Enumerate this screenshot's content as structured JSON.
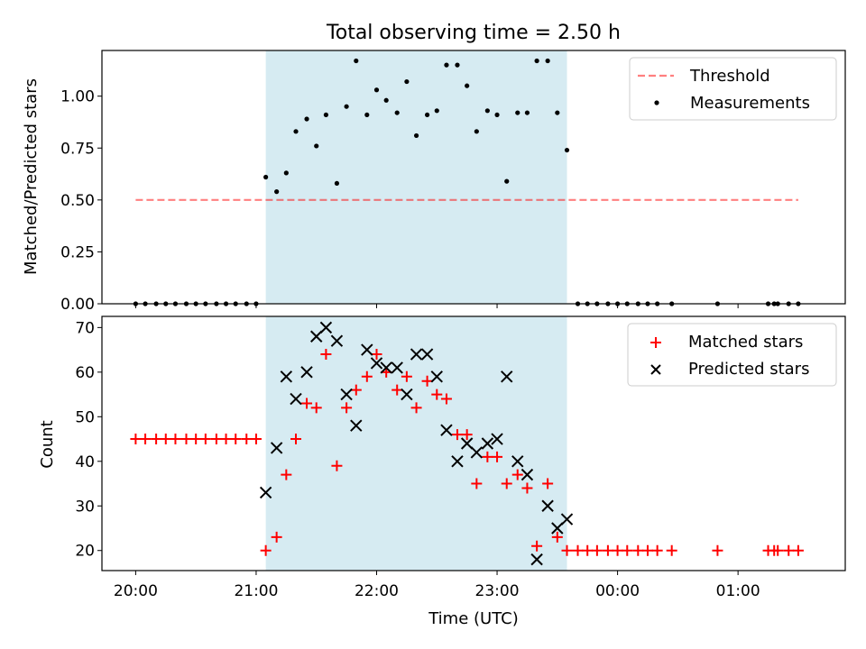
{
  "title": "Total observing time = 2.50 h",
  "xlabel": "Time (UTC)",
  "colors": {
    "shade": "#add8e6",
    "threshold": "#ff0000",
    "measurement": "#000000",
    "matched": "#ff0000",
    "predicted": "#000000"
  },
  "chart_data": [
    {
      "type": "scatter",
      "panel": "top",
      "ylabel": "Matched/Predicted stars",
      "ylim": [
        0,
        1.22
      ],
      "yticks": [
        "0.00",
        "0.25",
        "0.50",
        "0.75",
        "1.00"
      ],
      "xlim": [
        19.72,
        25.89
      ],
      "shaded_range": [
        21.08,
        23.58
      ],
      "legend_position": "top-right",
      "legend": [
        "Threshold",
        "Measurements"
      ],
      "threshold": {
        "name": "Threshold",
        "x": [
          20.0,
          25.5
        ],
        "y": 0.5,
        "style": "dashed"
      },
      "series": [
        {
          "name": "Measurements",
          "points": [
            [
              20.0,
              0.0
            ],
            [
              20.08,
              0.0
            ],
            [
              20.17,
              0.0
            ],
            [
              20.25,
              0.0
            ],
            [
              20.33,
              0.0
            ],
            [
              20.42,
              0.0
            ],
            [
              20.5,
              0.0
            ],
            [
              20.58,
              0.0
            ],
            [
              20.67,
              0.0
            ],
            [
              20.75,
              0.0
            ],
            [
              20.83,
              0.0
            ],
            [
              20.92,
              0.0
            ],
            [
              21.0,
              0.0
            ],
            [
              21.08,
              0.61
            ],
            [
              21.17,
              0.54
            ],
            [
              21.25,
              0.63
            ],
            [
              21.33,
              0.83
            ],
            [
              21.42,
              0.89
            ],
            [
              21.5,
              0.76
            ],
            [
              21.58,
              0.91
            ],
            [
              21.67,
              0.58
            ],
            [
              21.75,
              0.95
            ],
            [
              21.83,
              1.17
            ],
            [
              21.92,
              0.91
            ],
            [
              22.0,
              1.03
            ],
            [
              22.08,
              0.98
            ],
            [
              22.17,
              0.92
            ],
            [
              22.25,
              1.07
            ],
            [
              22.33,
              0.81
            ],
            [
              22.42,
              0.91
            ],
            [
              22.5,
              0.93
            ],
            [
              22.58,
              1.15
            ],
            [
              22.67,
              1.15
            ],
            [
              22.75,
              1.05
            ],
            [
              22.83,
              0.83
            ],
            [
              22.92,
              0.93
            ],
            [
              23.0,
              0.91
            ],
            [
              23.08,
              0.59
            ],
            [
              23.17,
              0.92
            ],
            [
              23.25,
              0.92
            ],
            [
              23.33,
              1.17
            ],
            [
              23.42,
              1.17
            ],
            [
              23.5,
              0.92
            ],
            [
              23.58,
              0.74
            ],
            [
              23.67,
              0.0
            ],
            [
              23.75,
              0.0
            ],
            [
              23.83,
              0.0
            ],
            [
              23.92,
              0.0
            ],
            [
              24.0,
              0.0
            ],
            [
              24.08,
              0.0
            ],
            [
              24.17,
              0.0
            ],
            [
              24.25,
              0.0
            ],
            [
              24.33,
              0.0
            ],
            [
              24.45,
              0.0
            ],
            [
              24.83,
              0.0
            ],
            [
              25.25,
              0.0
            ],
            [
              25.3,
              0.0
            ],
            [
              25.33,
              0.0
            ],
            [
              25.42,
              0.0
            ],
            [
              25.5,
              0.0
            ]
          ]
        }
      ]
    },
    {
      "type": "scatter",
      "panel": "bottom",
      "ylabel": "Count",
      "ylim": [
        15.5,
        72.5
      ],
      "yticks": [
        "20",
        "30",
        "40",
        "50",
        "60",
        "70"
      ],
      "xlim": [
        19.72,
        25.89
      ],
      "xticks": [
        "20:00",
        "21:00",
        "22:00",
        "23:00",
        "00:00",
        "01:00"
      ],
      "shaded_range": [
        21.08,
        23.58
      ],
      "legend_position": "top-right",
      "legend": [
        "Matched stars",
        "Predicted stars"
      ],
      "series": [
        {
          "name": "Matched stars",
          "marker": "+",
          "points": [
            [
              20.0,
              45
            ],
            [
              20.08,
              45
            ],
            [
              20.17,
              45
            ],
            [
              20.25,
              45
            ],
            [
              20.33,
              45
            ],
            [
              20.42,
              45
            ],
            [
              20.5,
              45
            ],
            [
              20.58,
              45
            ],
            [
              20.67,
              45
            ],
            [
              20.75,
              45
            ],
            [
              20.83,
              45
            ],
            [
              20.92,
              45
            ],
            [
              21.0,
              45
            ],
            [
              21.08,
              20
            ],
            [
              21.17,
              23
            ],
            [
              21.25,
              37
            ],
            [
              21.33,
              45
            ],
            [
              21.42,
              53
            ],
            [
              21.5,
              52
            ],
            [
              21.58,
              64
            ],
            [
              21.67,
              39
            ],
            [
              21.75,
              52
            ],
            [
              21.83,
              56
            ],
            [
              21.92,
              59
            ],
            [
              22.0,
              64
            ],
            [
              22.08,
              60
            ],
            [
              22.17,
              56
            ],
            [
              22.25,
              59
            ],
            [
              22.33,
              52
            ],
            [
              22.42,
              58
            ],
            [
              22.5,
              55
            ],
            [
              22.58,
              54
            ],
            [
              22.67,
              46
            ],
            [
              22.75,
              46
            ],
            [
              22.83,
              35
            ],
            [
              22.92,
              41
            ],
            [
              23.0,
              41
            ],
            [
              23.08,
              35
            ],
            [
              23.17,
              37
            ],
            [
              23.25,
              34
            ],
            [
              23.33,
              21
            ],
            [
              23.42,
              35
            ],
            [
              23.5,
              23
            ],
            [
              23.58,
              20
            ],
            [
              23.67,
              20
            ],
            [
              23.75,
              20
            ],
            [
              23.83,
              20
            ],
            [
              23.92,
              20
            ],
            [
              24.0,
              20
            ],
            [
              24.08,
              20
            ],
            [
              24.17,
              20
            ],
            [
              24.25,
              20
            ],
            [
              24.33,
              20
            ],
            [
              24.45,
              20
            ],
            [
              24.83,
              20
            ],
            [
              25.25,
              20
            ],
            [
              25.3,
              20
            ],
            [
              25.33,
              20
            ],
            [
              25.42,
              20
            ],
            [
              25.5,
              20
            ]
          ]
        },
        {
          "name": "Predicted stars",
          "marker": "x",
          "points": [
            [
              21.08,
              33
            ],
            [
              21.17,
              43
            ],
            [
              21.25,
              59
            ],
            [
              21.33,
              54
            ],
            [
              21.42,
              60
            ],
            [
              21.5,
              68
            ],
            [
              21.58,
              70
            ],
            [
              21.67,
              67
            ],
            [
              21.75,
              55
            ],
            [
              21.83,
              48
            ],
            [
              21.92,
              65
            ],
            [
              22.0,
              62
            ],
            [
              22.08,
              61
            ],
            [
              22.17,
              61
            ],
            [
              22.25,
              55
            ],
            [
              22.33,
              64
            ],
            [
              22.42,
              64
            ],
            [
              22.5,
              59
            ],
            [
              22.58,
              47
            ],
            [
              22.67,
              40
            ],
            [
              22.75,
              44
            ],
            [
              22.83,
              42
            ],
            [
              22.92,
              44
            ],
            [
              23.0,
              45
            ],
            [
              23.08,
              59
            ],
            [
              23.17,
              40
            ],
            [
              23.25,
              37
            ],
            [
              23.33,
              18
            ],
            [
              23.42,
              30
            ],
            [
              23.5,
              25
            ],
            [
              23.58,
              27
            ]
          ]
        }
      ]
    }
  ]
}
